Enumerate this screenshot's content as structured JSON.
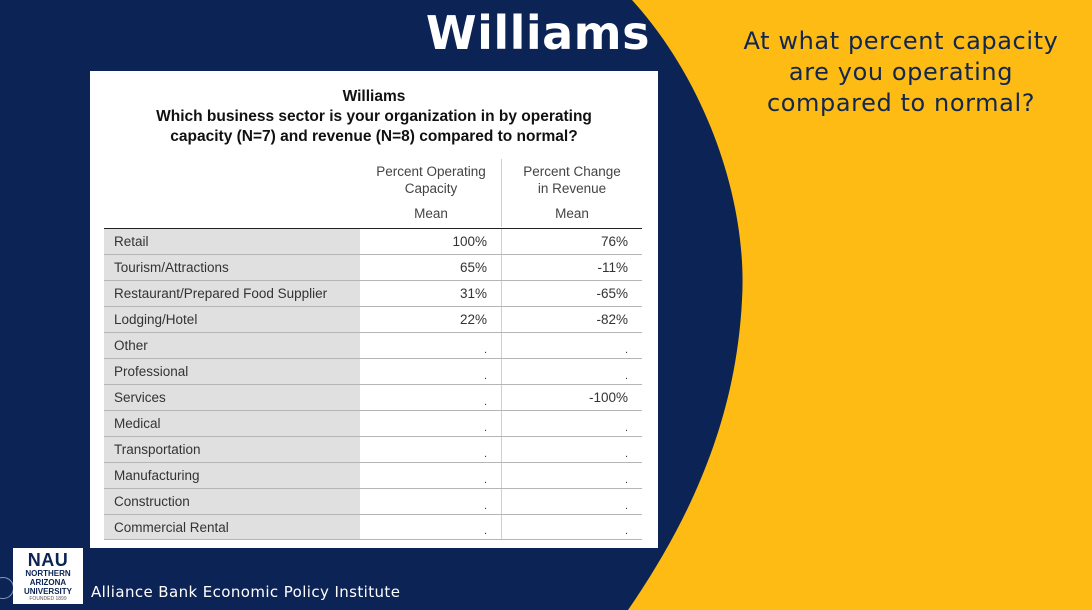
{
  "slide": {
    "title": "Williams",
    "question": "At what percent capacity are you operating compared to normal?",
    "footer": "Alliance Bank Economic Policy Institute",
    "colors": {
      "navy": "#0c2355",
      "gold": "#fdbb14"
    }
  },
  "table": {
    "title_line1": "Williams",
    "title_line2": "Which business sector is your organization in by operating",
    "title_line3": "capacity (N=7) and revenue (N=8) compared to normal?",
    "col1_header_line1": "Percent Operating",
    "col1_header_line2": "Capacity",
    "col2_header_line1": "Percent Change",
    "col2_header_line2": "in Revenue",
    "col1_sub": "Mean",
    "col2_sub": "Mean",
    "rows": [
      {
        "label": "Retail",
        "capacity": "100%",
        "revenue": "76%"
      },
      {
        "label": "Tourism/Attractions",
        "capacity": "65%",
        "revenue": "-11%"
      },
      {
        "label": "Restaurant/Prepared Food Supplier",
        "capacity": "31%",
        "revenue": "-65%"
      },
      {
        "label": "Lodging/Hotel",
        "capacity": "22%",
        "revenue": "-82%"
      },
      {
        "label": "Other",
        "capacity": ".",
        "revenue": "."
      },
      {
        "label": "Professional",
        "capacity": ".",
        "revenue": "."
      },
      {
        "label": "Services",
        "capacity": ".",
        "revenue": "-100%"
      },
      {
        "label": "Medical",
        "capacity": ".",
        "revenue": "."
      },
      {
        "label": "Transportation",
        "capacity": ".",
        "revenue": "."
      },
      {
        "label": "Manufacturing",
        "capacity": ".",
        "revenue": "."
      },
      {
        "label": "Construction",
        "capacity": ".",
        "revenue": "."
      },
      {
        "label": "Commercial Rental",
        "capacity": ".",
        "revenue": "."
      }
    ]
  },
  "logo": {
    "abbr": "NAU",
    "line1": "NORTHERN",
    "line2": "ARIZONA",
    "line3": "UNIVERSITY",
    "small": "FOUNDED 1899"
  }
}
